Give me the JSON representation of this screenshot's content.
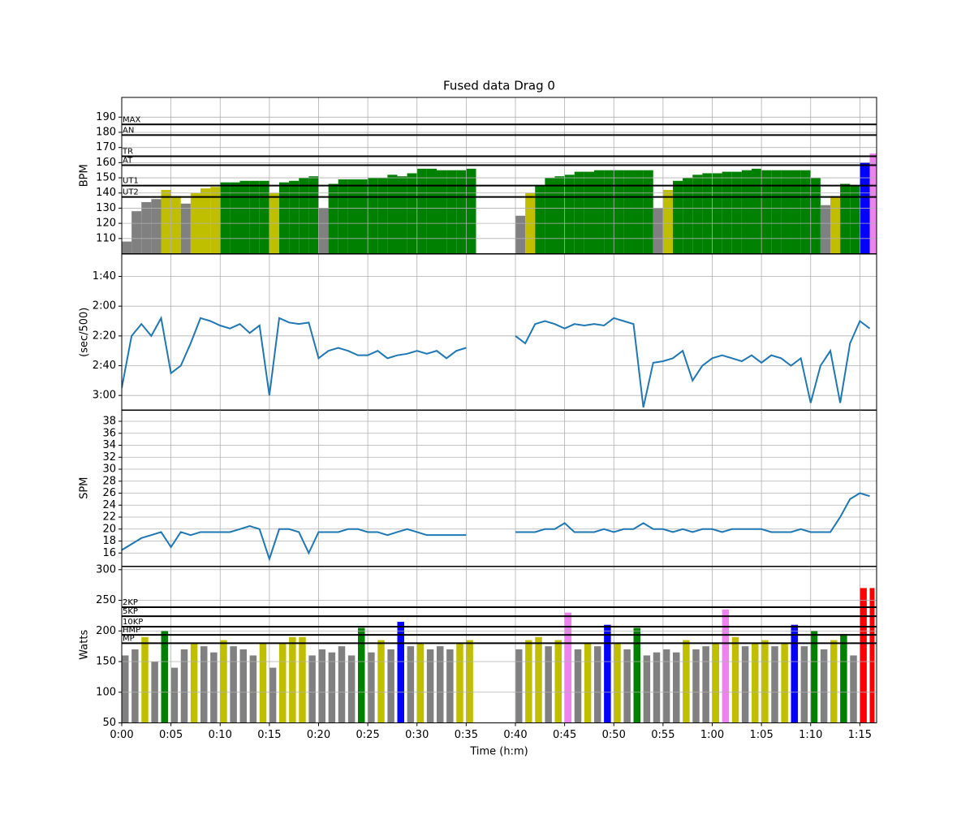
{
  "chart_data": {
    "title": "Fused data Drag 0",
    "xlabel": "Time (h:m)",
    "grid": true,
    "zone_colors": [
      "#808080",
      "#bfbf00",
      "#008000",
      "#0000ff",
      "#ee82ee",
      "#ff0000"
    ],
    "x": [
      0,
      1,
      2,
      3,
      4,
      5,
      6,
      7,
      8,
      9,
      10,
      11,
      12,
      13,
      14,
      15,
      16,
      17,
      18,
      19,
      20,
      21,
      22,
      23,
      24,
      25,
      26,
      27,
      28,
      29,
      30,
      31,
      32,
      33,
      34,
      35,
      36,
      37,
      38,
      39,
      40,
      41,
      42,
      43,
      44,
      45,
      46,
      47,
      48,
      49,
      50,
      51,
      52,
      53,
      54,
      55,
      56,
      57,
      58,
      59,
      60,
      61,
      62,
      63,
      64,
      65,
      66,
      67,
      68,
      69,
      70,
      71,
      72,
      73,
      74,
      75,
      76
    ],
    "xlim": [
      0,
      76.7
    ],
    "xticks": [
      {
        "value": 0,
        "label": "0:00"
      },
      {
        "value": 5,
        "label": "0:05"
      },
      {
        "value": 10,
        "label": "0:10"
      },
      {
        "value": 15,
        "label": "0:15"
      },
      {
        "value": 20,
        "label": "0:20"
      },
      {
        "value": 25,
        "label": "0:25"
      },
      {
        "value": 30,
        "label": "0:30"
      },
      {
        "value": 35,
        "label": "0:35"
      },
      {
        "value": 40,
        "label": "0:40"
      },
      {
        "value": 45,
        "label": "0:45"
      },
      {
        "value": 50,
        "label": "0:50"
      },
      {
        "value": 55,
        "label": "0:55"
      },
      {
        "value": 60,
        "label": "1:00"
      },
      {
        "value": 65,
        "label": "1:05"
      },
      {
        "value": 70,
        "label": "1:10"
      },
      {
        "value": 75,
        "label": "1:15"
      }
    ],
    "panels": [
      {
        "type": "area",
        "ylabel": "BPM",
        "ylim": [
          100,
          203
        ],
        "yticks": [
          110,
          120,
          130,
          140,
          150,
          160,
          170,
          180,
          190
        ],
        "zones": [
          {
            "label": "UT2",
            "value": 137.4
          },
          {
            "label": "UT1",
            "value": 144.9
          },
          {
            "label": "AT",
            "value": 158.3
          },
          {
            "label": "TR",
            "value": 164.2
          },
          {
            "label": "AN",
            "value": 178.2
          },
          {
            "label": "MAX",
            "value": 185.2
          }
        ],
        "values": [
          108,
          128,
          134,
          136,
          142,
          138,
          133,
          140,
          143,
          144,
          147,
          147,
          148,
          148,
          148,
          140,
          147,
          148,
          150,
          151,
          130,
          146,
          149,
          149,
          149,
          150,
          150,
          152,
          151,
          153,
          156,
          156,
          155,
          155,
          155,
          156,
          null,
          null,
          null,
          null,
          125,
          140,
          145,
          150,
          151,
          152,
          154,
          154,
          155,
          155,
          155,
          155,
          155,
          155,
          130,
          142,
          148,
          150,
          152,
          153,
          153,
          154,
          154,
          155,
          156,
          155,
          155,
          155,
          155,
          155,
          150,
          132,
          138,
          146,
          145,
          160,
          166
        ]
      },
      {
        "type": "line",
        "ylabel": "(sec/500)",
        "color": "#1f77b4",
        "ylim": [
          190,
          85
        ],
        "yticks": [
          {
            "value": 100,
            "label": "1:40"
          },
          {
            "value": 120,
            "label": "2:00"
          },
          {
            "value": 140,
            "label": "2:20"
          },
          {
            "value": 160,
            "label": "2:40"
          },
          {
            "value": 180,
            "label": "3:00"
          }
        ],
        "values": [
          175,
          140,
          132,
          140,
          128,
          165,
          160,
          145,
          128,
          130,
          133,
          135,
          132,
          138,
          133,
          180,
          128,
          131,
          132,
          131,
          155,
          150,
          148,
          150,
          153,
          153,
          150,
          155,
          153,
          152,
          150,
          152,
          150,
          155,
          150,
          148,
          null,
          null,
          null,
          null,
          140,
          145,
          132,
          130,
          132,
          135,
          132,
          133,
          132,
          133,
          128,
          130,
          132,
          188,
          158,
          157,
          155,
          150,
          170,
          160,
          155,
          153,
          155,
          157,
          153,
          158,
          153,
          155,
          160,
          155,
          185,
          160,
          150,
          185,
          145,
          130,
          135
        ]
      },
      {
        "type": "line",
        "ylabel": "SPM",
        "color": "#1f77b4",
        "ylim": [
          13.8,
          39.9
        ],
        "yticks": [
          16,
          18,
          20,
          22,
          24,
          26,
          28,
          30,
          32,
          34,
          36,
          38
        ],
        "values": [
          16.5,
          17.5,
          18.5,
          19,
          19.5,
          17,
          19.5,
          19,
          19.5,
          19.5,
          19.5,
          19.5,
          20,
          20.5,
          20,
          15,
          20,
          20,
          19.5,
          16,
          19.5,
          19.5,
          19.5,
          20,
          20,
          19.5,
          19.5,
          19,
          19.5,
          20,
          19.5,
          19,
          19,
          19,
          19,
          19,
          null,
          null,
          null,
          null,
          19.5,
          19.5,
          19.5,
          20,
          20,
          21,
          19.5,
          19.5,
          19.5,
          20,
          19.5,
          20,
          20,
          21,
          20,
          20,
          19.5,
          20,
          19.5,
          20,
          20,
          19.5,
          20,
          20,
          20,
          20,
          19.5,
          19.5,
          19.5,
          20,
          19.5,
          19.5,
          19.5,
          22,
          25,
          26,
          25.5
        ]
      },
      {
        "type": "bar",
        "ylabel": "Watts",
        "ylim": [
          50,
          305
        ],
        "yticks": [
          50,
          100,
          150,
          200,
          250,
          300
        ],
        "zones": [
          {
            "label": "MP",
            "value": 180
          },
          {
            "label": "HMP",
            "value": 193.6
          },
          {
            "label": "10KP",
            "value": 207
          },
          {
            "label": "5KP",
            "value": 224
          },
          {
            "label": "2KP",
            "value": 238.8
          }
        ],
        "values": [
          160,
          170,
          190,
          150,
          200,
          140,
          170,
          180,
          175,
          165,
          185,
          175,
          170,
          160,
          180,
          140,
          180,
          190,
          190,
          160,
          170,
          165,
          175,
          160,
          205,
          165,
          185,
          170,
          215,
          175,
          180,
          170,
          175,
          170,
          180,
          185,
          null,
          null,
          null,
          null,
          170,
          185,
          190,
          175,
          185,
          230,
          170,
          180,
          175,
          210,
          180,
          170,
          205,
          160,
          165,
          170,
          165,
          185,
          170,
          175,
          180,
          235,
          190,
          175,
          180,
          185,
          175,
          180,
          210,
          175,
          200,
          170,
          185,
          195,
          160,
          270,
          270
        ]
      }
    ]
  }
}
